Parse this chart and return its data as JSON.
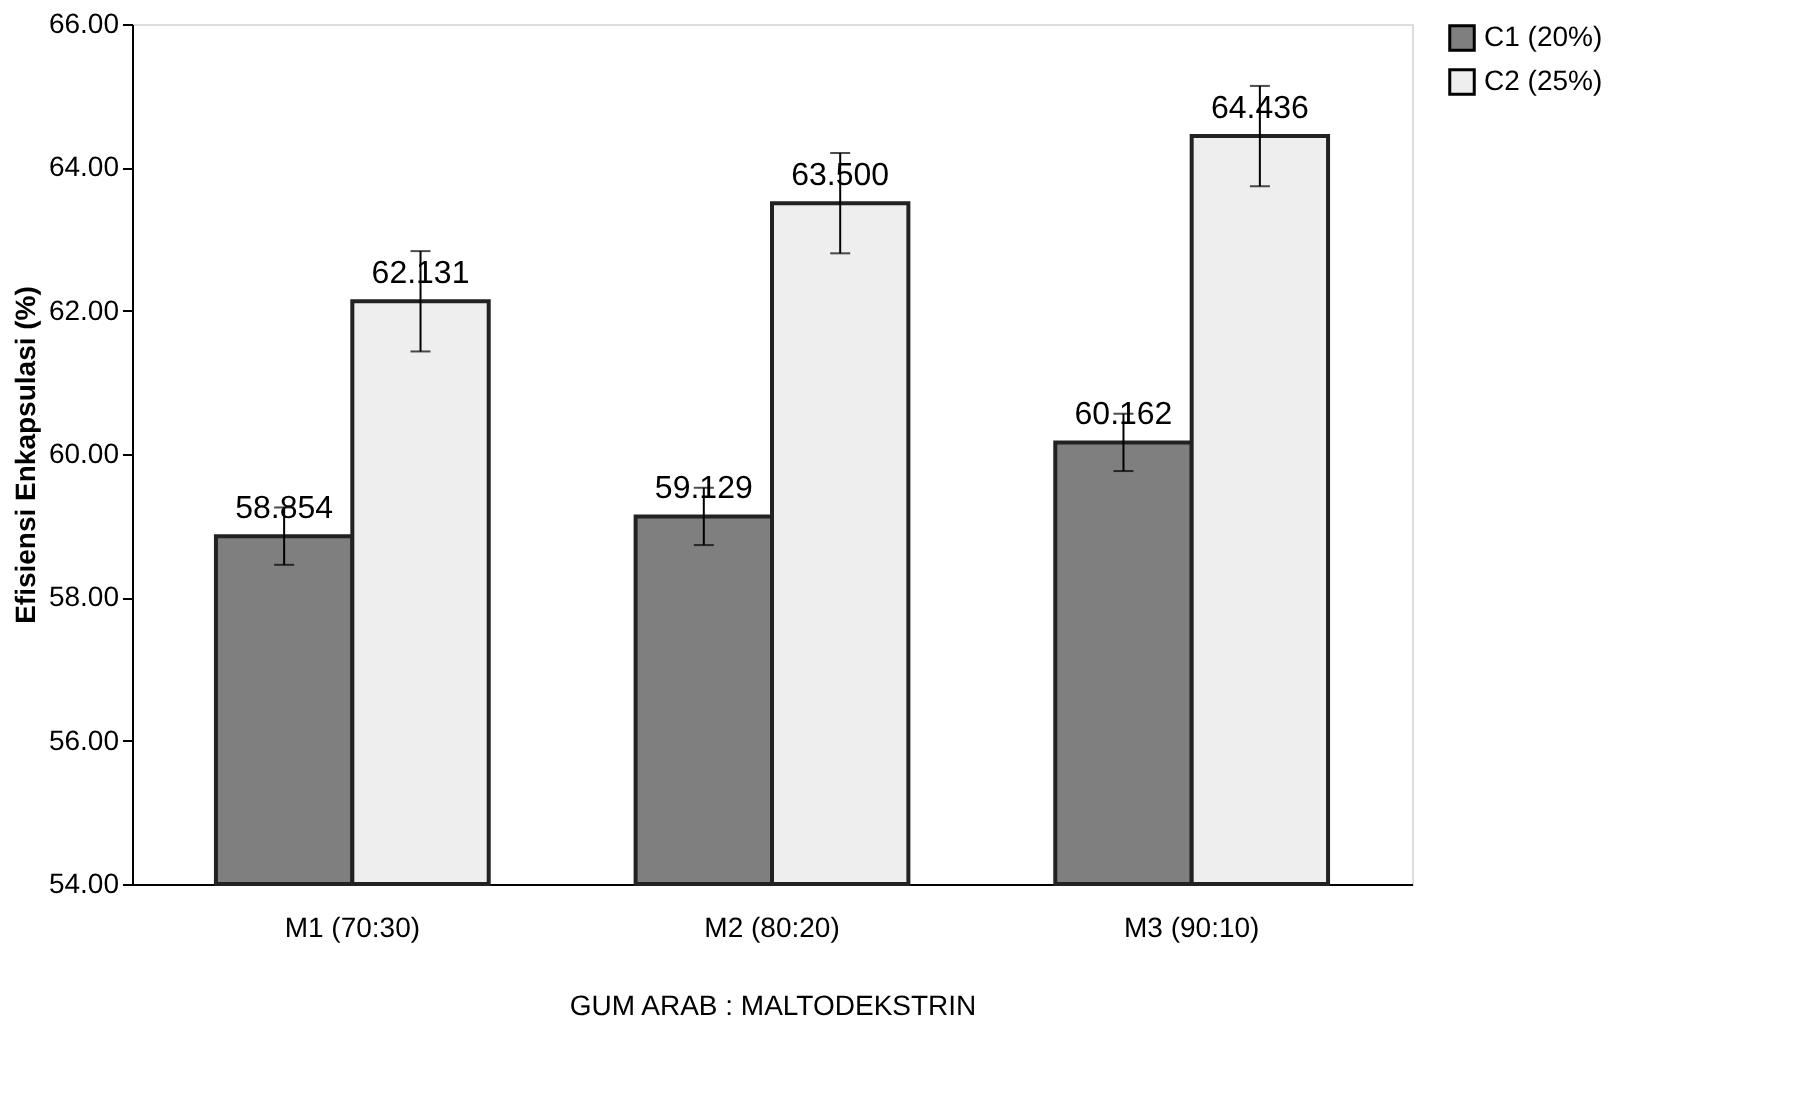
{
  "chart_data": {
    "type": "bar",
    "xlabel": "GUM ARAB : MALTODEKSTRIN",
    "ylabel": "Efisiensi Enkapsulasi (%)",
    "categories": [
      "M1 (70:30)",
      "M2 (80:20)",
      "M3 (90:10)"
    ],
    "series": [
      {
        "name": "C1 (20%)",
        "color": "#7f7f7f",
        "values": [
          58.854,
          59.129,
          60.162
        ],
        "errors": [
          0.4,
          0.4,
          0.4
        ]
      },
      {
        "name": "C2 (25%)",
        "color": "#eeeeee",
        "values": [
          62.131,
          63.5,
          64.436
        ],
        "errors": [
          0.7,
          0.7,
          0.7
        ]
      }
    ],
    "ylim": [
      54,
      66
    ],
    "yticks": [
      {
        "value": 54,
        "label": "54.00"
      },
      {
        "value": 56,
        "label": "56.00"
      },
      {
        "value": 58,
        "label": "58.00"
      },
      {
        "value": 60,
        "label": "60.00"
      },
      {
        "value": 62,
        "label": "62.00"
      },
      {
        "value": 64,
        "label": "64.00"
      },
      {
        "value": 66,
        "label": "66.00"
      }
    ],
    "value_labels": [
      [
        "58.854",
        "59.129",
        "60.162"
      ],
      [
        "62.131",
        "63.500",
        "64.436"
      ]
    ],
    "grid": false,
    "legend": "right"
  }
}
